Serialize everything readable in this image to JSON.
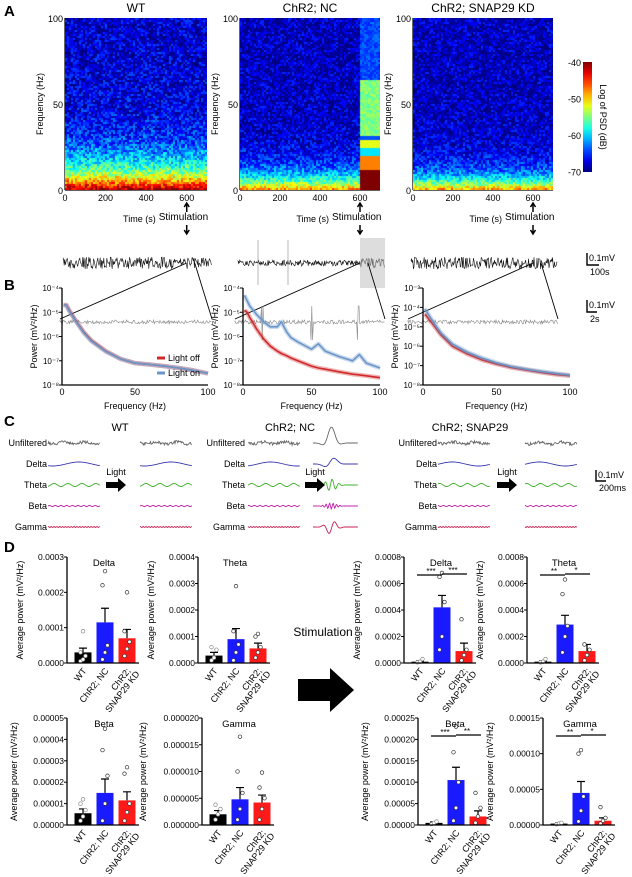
{
  "figure": {
    "panel_labels": [
      "A",
      "B",
      "C",
      "D"
    ],
    "groups": [
      "WT",
      "ChR2; NC",
      "ChR2; SNAP29 KD"
    ],
    "c_groups": [
      "WT",
      "ChR2; NC",
      "ChR2; SNAP29"
    ],
    "stimulation_label": "Stimulation",
    "light_label": "Light",
    "band_rows": [
      "Unfiltered",
      "Delta",
      "Theta",
      "Beta",
      "Gamma"
    ],
    "band_colors": [
      "#666666",
      "#3a3ab0",
      "#3fb02a",
      "#c020a8",
      "#c81e50"
    ],
    "scale_bars": {
      "trace": [
        "0.1mV",
        "100s"
      ],
      "zoom": [
        "0.1mV",
        "2s"
      ],
      "bands": [
        "0.1mV",
        "200ms"
      ]
    },
    "big_arrow_label": "Stimulation",
    "stimulation_color": "#2a2aa8"
  },
  "chart_data": [
    {
      "type": "heatmap",
      "group": "WT",
      "xlabel": "Time (s)",
      "ylabel": "Frequency (Hz)",
      "xlim": [
        0,
        700
      ],
      "ylim": [
        0,
        100
      ],
      "xticks": [
        "0",
        "200",
        "400",
        "600"
      ],
      "yticks": [
        "0",
        "50",
        "100"
      ],
      "stimulation_time": 600,
      "colorbar": {
        "label": "Log of PSD (dB)",
        "range": [
          -70,
          -40
        ],
        "ticks": [
          "-40",
          "-50",
          "-60",
          "-70"
        ],
        "colormap": "jet"
      }
    },
    {
      "type": "heatmap",
      "group": "ChR2; NC",
      "xlabel": "Time (s)",
      "ylabel": "Frequency (Hz)",
      "xlim": [
        0,
        700
      ],
      "ylim": [
        0,
        100
      ],
      "xticks": [
        "0",
        "200",
        "400",
        "600"
      ],
      "yticks": [
        "0",
        "50",
        "100"
      ],
      "stimulation_time": 600
    },
    {
      "type": "heatmap",
      "group": "ChR2; SNAP29 KD",
      "xlabel": "Time (s)",
      "ylabel": "Frequency (Hz)",
      "xlim": [
        0,
        700
      ],
      "ylim": [
        0,
        100
      ],
      "xticks": [
        "0",
        "200",
        "400",
        "600"
      ],
      "yticks": [
        "0",
        "50",
        "100"
      ],
      "stimulation_time": 600
    },
    {
      "type": "line",
      "xlabel": "Frequency (Hz)",
      "ylabel": "Power (mV²/Hz)",
      "xlim": [
        0,
        100
      ],
      "ylog": true,
      "ylim": [
        1e-08,
        0.0001
      ],
      "xticks": [
        "0",
        "50",
        "100"
      ],
      "yticks": [
        "10⁻⁸",
        "10⁻⁷",
        "10⁻⁶",
        "10⁻⁵",
        "10⁻⁴"
      ],
      "legend": "top-right",
      "x": [
        1,
        3,
        5,
        10,
        15,
        20,
        30,
        40,
        50,
        60,
        70,
        80,
        90,
        100
      ],
      "series": [
        {
          "name": "Light off",
          "color": "#d02a2a",
          "values": [
            2e-05,
            2e-05,
            1.2e-05,
            4e-06,
            1.5e-06,
            7e-07,
            2.5e-07,
            1.2e-07,
            8e-08,
            7e-08,
            6e-08,
            5e-08,
            4e-08,
            3e-08
          ]
        },
        {
          "name": "Light on",
          "color": "#6a96c8",
          "values": [
            2e-05,
            1.9e-05,
            1.1e-05,
            3.8e-06,
            1.4e-06,
            6.5e-07,
            2.4e-07,
            1.2e-07,
            8e-08,
            7e-08,
            6e-08,
            5e-08,
            4e-08,
            3e-08
          ]
        }
      ]
    },
    {
      "type": "line",
      "xlabel": "Frequency (Hz)",
      "ylabel": "Power (mV²/Hz)",
      "xlim": [
        0,
        100
      ],
      "ylog": true,
      "ylim": [
        1e-08,
        0.0001
      ],
      "xticks": [
        "0",
        "50",
        "100"
      ],
      "yticks": [
        "10⁻⁸",
        "10⁻⁷",
        "10⁻⁶",
        "10⁻⁵",
        "10⁻⁴"
      ],
      "x": [
        1,
        3,
        5,
        10,
        15,
        20,
        25,
        28,
        32,
        35,
        40,
        50,
        55,
        60,
        70,
        80,
        85,
        90,
        100
      ],
      "series": [
        {
          "name": "Light off",
          "color": "#d02a2a",
          "values": [
            1.2e-05,
            1e-05,
            6e-06,
            2e-06,
            8e-07,
            4e-07,
            2.5e-07,
            2e-07,
            1.6e-07,
            1.3e-07,
            1e-07,
            6e-08,
            5e-08,
            4.5e-08,
            3.5e-08,
            2.8e-08,
            2.6e-08,
            2.4e-08,
            2e-08
          ]
        },
        {
          "name": "Light on",
          "color": "#6a96c8",
          "values": [
            5e-05,
            3e-05,
            1.8e-05,
            8e-06,
            4e-06,
            2.5e-06,
            2.5e-06,
            4e-06,
            1.5e-06,
            9e-07,
            6e-07,
            3e-07,
            5e-07,
            2.5e-07,
            1.5e-07,
            1e-07,
            1.8e-07,
            8e-08,
            5e-08
          ]
        }
      ]
    },
    {
      "type": "line",
      "xlabel": "Frequency (Hz)",
      "ylabel": "Power (mV²/Hz)",
      "xlim": [
        0,
        100
      ],
      "ylog": true,
      "ylim": [
        1e-08,
        0.001
      ],
      "xticks": [
        "0",
        "50",
        "100"
      ],
      "yticks": [
        "10⁻⁸",
        "10⁻⁷",
        "10⁻⁶",
        "10⁻⁵",
        "10⁻⁴",
        "10⁻³"
      ],
      "x": [
        1,
        2,
        5,
        8,
        12,
        20,
        30,
        40,
        50,
        60,
        70,
        80,
        90,
        100
      ],
      "series": [
        {
          "name": "Light off",
          "color": "#d02a2a",
          "values": [
            4e-05,
            4e-05,
            2e-05,
            1e-05,
            4e-06,
            1e-06,
            4e-07,
            2e-07,
            1.2e-07,
            8e-08,
            6e-08,
            4.5e-08,
            3.5e-08,
            3e-08
          ]
        },
        {
          "name": "Light on",
          "color": "#6a96c8",
          "values": [
            8e-05,
            7e-05,
            3e-05,
            1.4e-05,
            5e-06,
            1.3e-06,
            5e-07,
            2.5e-07,
            1.4e-07,
            9e-08,
            6.5e-08,
            5e-08,
            4e-08,
            3.2e-08
          ]
        }
      ]
    },
    {
      "type": "bar",
      "title": "Delta",
      "ylabel": "Average power (mV²/Hz)",
      "category_labels": [
        [
          "WT"
        ],
        [
          "ChR2; NC"
        ],
        [
          "ChR2;",
          "SNAP29 KD"
        ]
      ],
      "colors": [
        "#000000",
        "#1a1aff",
        "#ff1a1a"
      ],
      "ylim": [
        0,
        0.0003
      ],
      "yticks": [
        "0.0000",
        "0.0001",
        "0.0002",
        "0.0003"
      ],
      "values": [
        3e-05,
        0.000115,
        7e-05
      ],
      "sem": [
        1.2e-05,
        4e-05,
        2.5e-05
      ],
      "points": [
        [
          5e-06,
          1e-05,
          2e-05,
          3e-05,
          9e-05
        ],
        [
          1e-05,
          3e-05,
          5e-05,
          0.00022,
          0.00026
        ],
        [
          2e-05,
          4e-05,
          6e-05,
          9e-05,
          0.0002
        ]
      ],
      "significance": []
    },
    {
      "type": "bar",
      "title": "Theta",
      "ylabel": "Average power (mV²/Hz)",
      "category_labels": [
        [
          "WT"
        ],
        [
          "ChR2; NC"
        ],
        [
          "ChR2;",
          "SNAP29 KD"
        ]
      ],
      "colors": [
        "#000000",
        "#1a1aff",
        "#ff1a1a"
      ],
      "ylim": [
        0,
        0.0004
      ],
      "yticks": [
        "0.0000",
        "0.0001",
        "0.0002",
        "0.0003",
        "0.0004"
      ],
      "values": [
        2.8e-05,
        9e-05,
        5.5e-05
      ],
      "sem": [
        1.2e-05,
        4e-05,
        2e-05
      ],
      "points": [
        [
          1e-05,
          2e-05,
          5e-05,
          6e-05
        ],
        [
          1e-05,
          4e-05,
          7e-05,
          0.00012,
          0.00029
        ],
        [
          2e-05,
          4e-05,
          6e-05,
          0.0001,
          0.00011
        ]
      ],
      "significance": []
    },
    {
      "type": "bar",
      "title": "Beta",
      "ylabel": "Average power (mV²/Hz)",
      "category_labels": [
        [
          "WT"
        ],
        [
          "ChR2; NC"
        ],
        [
          "ChR2;",
          "SNAP29 KD"
        ]
      ],
      "colors": [
        "#000000",
        "#1a1aff",
        "#ff1a1a"
      ],
      "ylim": [
        0,
        5e-05
      ],
      "yticks": [
        "0.00000",
        "0.00001",
        "0.00002",
        "0.00003",
        "0.00004",
        "0.00005"
      ],
      "values": [
        5.5e-06,
        1.5e-05,
        1.15e-05
      ],
      "sem": [
        2e-06,
        6.5e-06,
        4e-06
      ],
      "points": [
        [
          2e-06,
          4e-06,
          7e-06,
          1e-05,
          1.2e-05
        ],
        [
          2e-06,
          1e-05,
          2.3e-05,
          3.5e-05,
          4.5e-05
        ],
        [
          2e-06,
          6e-06,
          1e-05,
          2.4e-05,
          2.7e-05
        ]
      ],
      "significance": []
    },
    {
      "type": "bar",
      "title": "Gamma",
      "ylabel": "Average power (mV²/Hz)",
      "category_labels": [
        [
          "WT"
        ],
        [
          "ChR2; NC"
        ],
        [
          "ChR2;",
          "SNAP29 KD"
        ]
      ],
      "colors": [
        "#000000",
        "#1a1aff",
        "#ff1a1a"
      ],
      "ylim": [
        0,
        2e-05
      ],
      "yticks": [
        "0.000000",
        "0.000005",
        "0.000010",
        "0.000015",
        "0.000020"
      ],
      "values": [
        2e-06,
        4.8e-06,
        4.2e-06
      ],
      "sem": [
        7e-07,
        2.2e-06,
        1.4e-06
      ],
      "points": [
        [
          1e-06,
          2e-06,
          3e-06,
          3.8e-06
        ],
        [
          1e-06,
          3e-06,
          6e-06,
          1e-05,
          1.65e-05
        ],
        [
          1e-06,
          3e-06,
          5e-06,
          7e-06,
          9.8e-06
        ]
      ],
      "significance": []
    },
    {
      "type": "bar",
      "title": "Delta",
      "ylabel": "Average power (mV²/Hz)",
      "category_labels": [
        [
          "WT"
        ],
        [
          "ChR2; NC"
        ],
        [
          "ChR2;",
          "SNAP29 KD"
        ]
      ],
      "colors": [
        "#000000",
        "#1a1aff",
        "#ff1a1a"
      ],
      "ylim": [
        0,
        0.0008
      ],
      "yticks": [
        "0.0000",
        "0.0002",
        "0.0004",
        "0.0006",
        "0.0008"
      ],
      "values": [
        1e-05,
        0.00042,
        9e-05
      ],
      "sem": [
        6e-06,
        9e-05,
        6e-05
      ],
      "points": [
        [
          5e-06,
          1e-05,
          3e-05
        ],
        [
          0.0001,
          0.0002,
          0.00046,
          0.00065,
          0.00068
        ],
        [
          2e-05,
          6e-05,
          0.0001,
          0.00033
        ]
      ],
      "significance": [
        {
          "from": 0,
          "to": 1,
          "label": "***"
        },
        {
          "from": 1,
          "to": 2,
          "label": "***"
        }
      ]
    },
    {
      "type": "bar",
      "title": "Theta",
      "ylabel": "Average power (mV²/Hz)",
      "category_labels": [
        [
          "WT"
        ],
        [
          "ChR2; NC"
        ],
        [
          "ChR2;",
          "SNAP29 KD"
        ]
      ],
      "colors": [
        "#000000",
        "#1a1aff",
        "#ff1a1a"
      ],
      "ylim": [
        0,
        0.0008
      ],
      "yticks": [
        "0.0000",
        "0.0002",
        "0.0004",
        "0.0006",
        "0.0008"
      ],
      "values": [
        1e-05,
        0.00029,
        9e-05
      ],
      "sem": [
        6e-06,
        7e-05,
        5e-05
      ],
      "points": [
        [
          5e-06,
          1e-05,
          3e-05
        ],
        [
          8e-05,
          0.0002,
          0.00028,
          0.00052,
          0.00063
        ],
        [
          2e-05,
          6e-05,
          0.0001,
          0.00014
        ]
      ],
      "significance": [
        {
          "from": 0,
          "to": 1,
          "label": "**"
        },
        {
          "from": 1,
          "to": 2,
          "label": "*"
        }
      ]
    },
    {
      "type": "bar",
      "title": "Beta",
      "ylabel": "Average power (mV²/Hz)",
      "category_labels": [
        [
          "WT"
        ],
        [
          "ChR2; NC"
        ],
        [
          "ChR2;",
          "SNAP29 KD"
        ]
      ],
      "colors": [
        "#000000",
        "#1a1aff",
        "#ff1a1a"
      ],
      "ylim": [
        0,
        0.00025
      ],
      "yticks": [
        "0.00000",
        "0.00005",
        "0.00010",
        "0.00015",
        "0.00020",
        "0.00025"
      ],
      "values": [
        5e-06,
        0.000105,
        2e-05
      ],
      "sem": [
        2e-06,
        3e-05,
        1.3e-05
      ],
      "points": [
        [
          2e-06,
          5e-06,
          8e-06
        ],
        [
          1e-05,
          4e-05,
          0.0001,
          0.00017,
          0.00023
        ],
        [
          5e-06,
          2e-05,
          4e-05,
          7.5e-05
        ]
      ],
      "significance": [
        {
          "from": 0,
          "to": 1,
          "label": "***"
        },
        {
          "from": 1,
          "to": 2,
          "label": "**"
        }
      ]
    },
    {
      "type": "bar",
      "title": "Gamma",
      "ylabel": "Average power (mV²/Hz)",
      "category_labels": [
        [
          "WT"
        ],
        [
          "ChR2; NC"
        ],
        [
          "ChR2;",
          "SNAP29 KD"
        ]
      ],
      "colors": [
        "#000000",
        "#1a1aff",
        "#ff1a1a"
      ],
      "ylim": [
        0,
        0.00015
      ],
      "yticks": [
        "0.00000",
        "0.00005",
        "0.00010",
        "0.00015"
      ],
      "values": [
        2e-06,
        4.5e-05,
        6e-06
      ],
      "sem": [
        1e-06,
        1.6e-05,
        4e-06
      ],
      "points": [
        [
          1e-06,
          2e-06,
          3e-06
        ],
        [
          5e-06,
          2e-05,
          4e-05,
          0.0001,
          0.000105
        ],
        [
          2e-06,
          6e-06,
          1e-05,
          2.5e-05
        ]
      ],
      "significance": [
        {
          "from": 0,
          "to": 1,
          "label": "**"
        },
        {
          "from": 1,
          "to": 2,
          "label": "*"
        }
      ]
    }
  ]
}
